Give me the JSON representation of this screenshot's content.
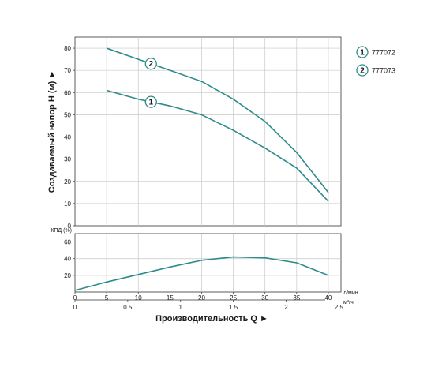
{
  "chart_data": [
    {
      "type": "line",
      "name": "head",
      "ylabel": "Создаваемый напор H (м) ►",
      "xlim": [
        0,
        42
      ],
      "ylim": [
        0,
        85
      ],
      "yticks": [
        0,
        10,
        20,
        30,
        40,
        50,
        60,
        70,
        80
      ],
      "xgrid": [
        5,
        10,
        15,
        20,
        25,
        30,
        35,
        40
      ],
      "grid": true,
      "series": [
        {
          "marker": "1",
          "color": "#2e8b8b",
          "x": [
            5,
            10,
            15,
            20,
            25,
            30,
            35,
            40
          ],
          "y": [
            61,
            57,
            54,
            50,
            43,
            35,
            26,
            11
          ],
          "marker_x": 12
        },
        {
          "marker": "2",
          "color": "#2e8b8b",
          "x": [
            5,
            10,
            15,
            20,
            25,
            30,
            35,
            40
          ],
          "y": [
            80,
            75,
            70,
            65,
            57,
            47,
            33,
            15
          ],
          "marker_x": 12
        }
      ]
    },
    {
      "type": "line",
      "name": "efficiency",
      "ylabel": "КПД (%)",
      "xlim": [
        0,
        42
      ],
      "ylim": [
        0,
        70
      ],
      "yticks": [
        20,
        40,
        60
      ],
      "xgrid": [
        5,
        10,
        15,
        20,
        25,
        30,
        35,
        40
      ],
      "grid": true,
      "series": [
        {
          "color": "#2e8b8b",
          "x": [
            0,
            5,
            10,
            15,
            20,
            25,
            30,
            35,
            40
          ],
          "y": [
            2,
            12,
            21,
            30,
            38,
            42,
            41,
            35,
            20
          ]
        }
      ]
    }
  ],
  "legend": {
    "placement": "top-right",
    "entries": [
      {
        "marker": "1",
        "label": "777072"
      },
      {
        "marker": "2",
        "label": "777073"
      }
    ]
  },
  "x_axis_lpm": {
    "unit": "л/мин",
    "ticks": [
      "0",
      "5",
      "10",
      "15",
      "20",
      "25",
      "30",
      "35",
      "40"
    ],
    "values": [
      0,
      5,
      10,
      15,
      20,
      25,
      30,
      35,
      40
    ]
  },
  "x_axis_m3h": {
    "unit": "м³/ч",
    "ticks": [
      "0",
      "0.5",
      "1",
      "1.5",
      "2",
      "2.5"
    ],
    "values": [
      0,
      0.5,
      1,
      1.5,
      2,
      2.5
    ]
  },
  "xlabel": "Производительность Q ►",
  "colors": {
    "curve": "#2e8b8b",
    "grid": "#c8c8c8",
    "axis": "#333333"
  }
}
